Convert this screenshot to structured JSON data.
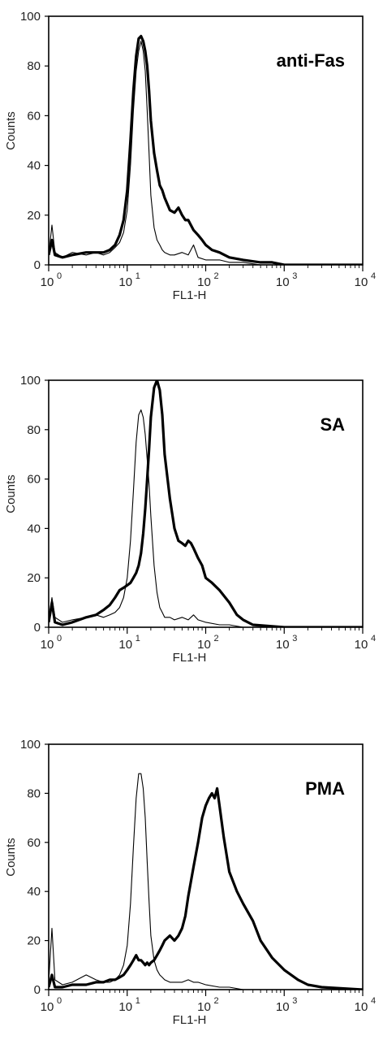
{
  "chart_data": [
    {
      "type": "line",
      "title": "anti-Fas",
      "xlabel": "FL1-H",
      "ylabel": "Counts",
      "xscale": "log",
      "xlim": [
        1,
        10000
      ],
      "ylim": [
        0,
        100
      ],
      "xticks": [
        "10",
        "10",
        "10",
        "10",
        "10"
      ],
      "xtick_exponents": [
        "0",
        "1",
        "2",
        "3",
        "4"
      ],
      "yticks": [
        "0",
        "20",
        "40",
        "60",
        "80",
        "100"
      ],
      "grid": false,
      "series": [
        {
          "style": "thin",
          "x": [
            1.0,
            1.1,
            1.2,
            1.5,
            2,
            3,
            4,
            5,
            6,
            7,
            8,
            9,
            10,
            11,
            12,
            13,
            14,
            15,
            16,
            17,
            18,
            19,
            20,
            22,
            24,
            26,
            28,
            30,
            35,
            40,
            50,
            60,
            70,
            80,
            100,
            150,
            200,
            300,
            500,
            1000,
            10000
          ],
          "y": [
            4,
            16,
            5,
            3,
            5,
            4,
            5,
            4,
            5,
            7,
            9,
            13,
            22,
            40,
            62,
            78,
            86,
            90,
            86,
            78,
            62,
            45,
            28,
            15,
            10,
            8,
            6,
            5,
            4,
            4,
            5,
            4,
            8,
            3,
            2,
            2,
            1,
            1,
            0,
            0,
            0
          ]
        },
        {
          "style": "thick",
          "x": [
            1.0,
            1.1,
            1.2,
            1.5,
            2,
            3,
            4,
            5,
            6,
            7,
            8,
            9,
            10,
            11,
            12,
            13,
            14,
            15,
            16,
            17,
            18,
            19,
            20,
            22,
            24,
            26,
            28,
            30,
            35,
            40,
            45,
            50,
            55,
            60,
            70,
            80,
            90,
            100,
            120,
            150,
            200,
            300,
            500,
            700,
            1000,
            10000
          ],
          "y": [
            4,
            10,
            4,
            3,
            4,
            5,
            5,
            5,
            6,
            8,
            12,
            18,
            30,
            50,
            70,
            84,
            91,
            92,
            90,
            86,
            80,
            70,
            58,
            45,
            38,
            32,
            30,
            27,
            22,
            21,
            23,
            20,
            18,
            18,
            14,
            12,
            10,
            8,
            6,
            5,
            3,
            2,
            1,
            1,
            0,
            0
          ]
        }
      ]
    },
    {
      "type": "line",
      "title": "SA",
      "xlabel": "FL1-H",
      "ylabel": "Counts",
      "xscale": "log",
      "xlim": [
        1,
        10000
      ],
      "ylim": [
        0,
        100
      ],
      "xticks": [
        "10",
        "10",
        "10",
        "10",
        "10"
      ],
      "xtick_exponents": [
        "0",
        "1",
        "2",
        "3",
        "4"
      ],
      "yticks": [
        "0",
        "20",
        "40",
        "60",
        "80",
        "100"
      ],
      "grid": false,
      "series": [
        {
          "style": "thin",
          "x": [
            1.0,
            1.1,
            1.2,
            1.5,
            2,
            3,
            4,
            5,
            6,
            7,
            8,
            9,
            10,
            11,
            12,
            13,
            14,
            15,
            16,
            17,
            18,
            19,
            20,
            22,
            24,
            26,
            28,
            30,
            35,
            40,
            50,
            60,
            70,
            80,
            100,
            150,
            200,
            300,
            1000,
            10000
          ],
          "y": [
            3,
            12,
            4,
            2,
            3,
            4,
            5,
            4,
            5,
            6,
            8,
            12,
            20,
            35,
            55,
            75,
            86,
            88,
            85,
            78,
            68,
            58,
            45,
            25,
            14,
            8,
            6,
            4,
            4,
            3,
            4,
            3,
            5,
            3,
            2,
            1,
            1,
            0,
            0,
            0
          ]
        },
        {
          "style": "thick",
          "x": [
            1.0,
            1.1,
            1.2,
            1.5,
            2,
            3,
            4,
            5,
            6,
            7,
            8,
            9,
            10,
            11,
            12,
            13,
            14,
            15,
            16,
            17,
            18,
            19,
            20,
            22,
            24,
            26,
            28,
            30,
            35,
            40,
            45,
            50,
            55,
            60,
            65,
            70,
            80,
            90,
            100,
            120,
            150,
            200,
            250,
            300,
            400,
            1000,
            10000
          ],
          "y": [
            2,
            10,
            2,
            1,
            2,
            4,
            5,
            7,
            9,
            12,
            15,
            16,
            17,
            18,
            20,
            22,
            25,
            30,
            38,
            48,
            60,
            72,
            85,
            97,
            100,
            96,
            86,
            70,
            52,
            40,
            35,
            34,
            33,
            35,
            34,
            32,
            28,
            25,
            20,
            18,
            15,
            10,
            5,
            3,
            1,
            0,
            0
          ]
        }
      ]
    },
    {
      "type": "line",
      "title": "PMA",
      "xlabel": "FL1-H",
      "ylabel": "Counts",
      "xscale": "log",
      "xlim": [
        1,
        10000
      ],
      "ylim": [
        0,
        100
      ],
      "xticks": [
        "10",
        "10",
        "10",
        "10",
        "10"
      ],
      "xtick_exponents": [
        "0",
        "1",
        "2",
        "3",
        "4"
      ],
      "yticks": [
        "0",
        "20",
        "40",
        "60",
        "80",
        "100"
      ],
      "grid": false,
      "series": [
        {
          "style": "thin",
          "x": [
            1.0,
            1.1,
            1.2,
            1.5,
            2,
            3,
            4,
            5,
            6,
            7,
            8,
            9,
            10,
            11,
            12,
            13,
            14,
            15,
            16,
            17,
            18,
            19,
            20,
            22,
            24,
            26,
            28,
            30,
            35,
            40,
            50,
            60,
            70,
            80,
            100,
            150,
            200,
            300,
            1000,
            10000
          ],
          "y": [
            3,
            25,
            4,
            2,
            3,
            6,
            4,
            3,
            3,
            4,
            6,
            10,
            18,
            35,
            58,
            78,
            88,
            88,
            82,
            70,
            52,
            36,
            22,
            12,
            8,
            6,
            5,
            4,
            3,
            3,
            3,
            4,
            3,
            3,
            2,
            1,
            1,
            0,
            0,
            0
          ]
        },
        {
          "style": "thick",
          "x": [
            1.0,
            1.1,
            1.2,
            1.5,
            2,
            3,
            4,
            5,
            6,
            7,
            8,
            9,
            10,
            11,
            12,
            13,
            14,
            15,
            16,
            17,
            18,
            19,
            20,
            22,
            24,
            26,
            28,
            30,
            35,
            40,
            45,
            50,
            55,
            60,
            70,
            80,
            90,
            100,
            110,
            120,
            130,
            140,
            150,
            170,
            200,
            250,
            300,
            400,
            500,
            700,
            1000,
            1500,
            2000,
            3000,
            10000
          ],
          "y": [
            1,
            6,
            1,
            1,
            2,
            2,
            3,
            3,
            4,
            4,
            5,
            6,
            8,
            10,
            12,
            14,
            12,
            12,
            11,
            10,
            11,
            10,
            11,
            12,
            14,
            16,
            18,
            20,
            22,
            20,
            22,
            25,
            30,
            38,
            50,
            60,
            70,
            75,
            78,
            80,
            78,
            82,
            75,
            62,
            48,
            40,
            35,
            28,
            20,
            13,
            8,
            4,
            2,
            1,
            0
          ]
        }
      ]
    }
  ]
}
